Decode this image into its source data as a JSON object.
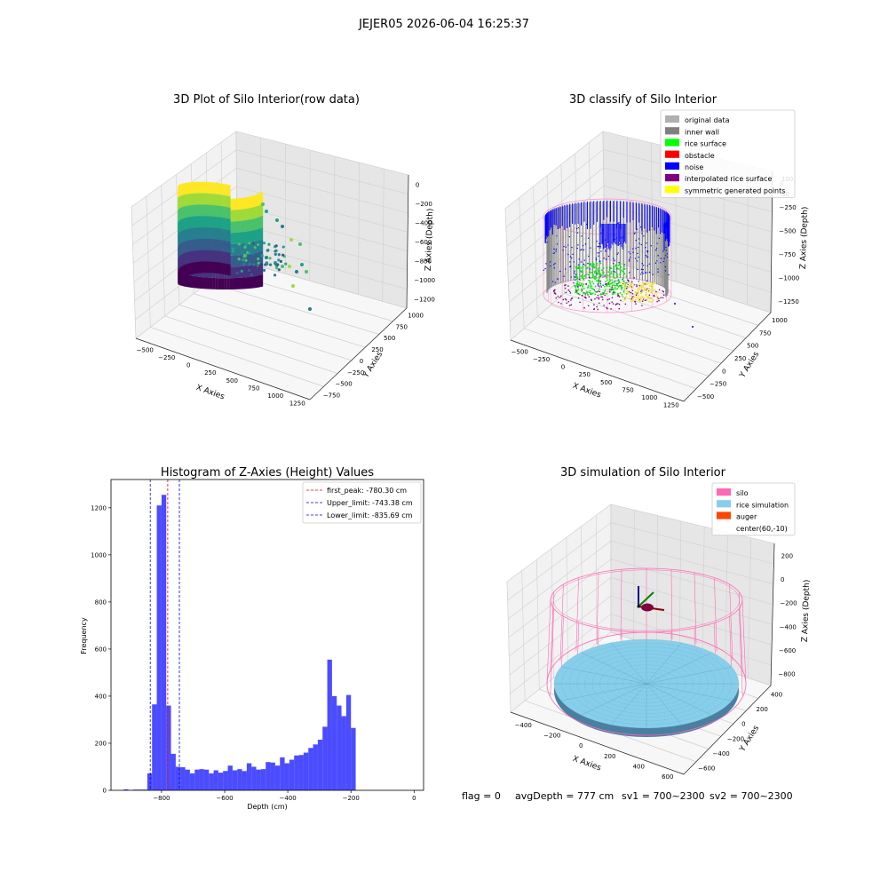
{
  "suptitle": "JEJER05 2026-06-04 16:25:37",
  "footer": {
    "flag": "flag = 0",
    "avg_depth": "avgDepth = 777 cm",
    "sv1": "sv1 = 700~2300",
    "sv2": "sv2 = 700~2300"
  },
  "chart_data": [
    {
      "type": "scatter",
      "projection": "3d",
      "title": "3D Plot of Silo Interior(row data)",
      "xlabel": "X Axies",
      "ylabel": "Y Axies",
      "zlabel": "Z Axies (Depth)",
      "x_ticks": [
        "−500",
        "−250",
        "0",
        "250",
        "500",
        "750",
        "1000",
        "1250"
      ],
      "y_ticks": [
        "−750",
        "−500",
        "−250",
        "0",
        "250",
        "500",
        "750",
        "1000"
      ],
      "z_ticks": [
        "0",
        "−200",
        "−400",
        "−600",
        "−800",
        "−1000",
        "−1200"
      ],
      "colormap": "viridis",
      "grid": true
    },
    {
      "type": "scatter",
      "projection": "3d",
      "title": "3D classify of Silo Interior",
      "xlabel": "X Axies",
      "ylabel": "Y Axies",
      "zlabel": "Z Axies (Depth)",
      "x_ticks": [
        "−500",
        "−250",
        "0",
        "250",
        "500",
        "750",
        "1000",
        "1250"
      ],
      "y_ticks": [
        "−500",
        "−250",
        "0",
        "250",
        "500",
        "750",
        "1000"
      ],
      "z_ticks": [
        "0",
        "−250",
        "−500",
        "−750",
        "−1000",
        "−1250"
      ],
      "z_ticks_partial": [
        "100",
        "50"
      ],
      "legend_position": "top-right",
      "legend": [
        {
          "name": "original data",
          "color": "#b0b0b0"
        },
        {
          "name": "inner wall",
          "color": "#808080"
        },
        {
          "name": "rice surface",
          "color": "#00ff00"
        },
        {
          "name": "obstacle",
          "color": "#ff0000"
        },
        {
          "name": "noise",
          "color": "#0000ff"
        },
        {
          "name": "interpolated rice surface",
          "color": "#800080"
        },
        {
          "name": "symmetric generated points",
          "color": "#ffff00"
        }
      ],
      "grid": true
    },
    {
      "type": "bar",
      "subtype": "histogram",
      "title": "Histogram of Z-Axies (Height) Values",
      "xlabel": "Depth (cm)",
      "ylabel": "Frequency",
      "xlim": [
        -960,
        30
      ],
      "ylim": [
        0,
        1320
      ],
      "x_ticks": [
        -800,
        -600,
        -400,
        -200,
        0
      ],
      "x_tick_labels": [
        "−800",
        "−600",
        "−400",
        "−200",
        "0"
      ],
      "y_ticks": [
        0,
        200,
        400,
        600,
        800,
        1000,
        1200
      ],
      "bar_color": "#0000ff",
      "bar_alpha": 0.7,
      "bins": [
        [
          -920,
          -905,
          4
        ],
        [
          -905,
          -890,
          1
        ],
        [
          -890,
          -875,
          3
        ],
        [
          -875,
          -860,
          3
        ],
        [
          -860,
          -845,
          3
        ],
        [
          -845,
          -830,
          72
        ],
        [
          -830,
          -815,
          365
        ],
        [
          -815,
          -800,
          1210
        ],
        [
          -800,
          -785,
          1255
        ],
        [
          -785,
          -770,
          360
        ],
        [
          -770,
          -755,
          155
        ],
        [
          -755,
          -740,
          100
        ],
        [
          -740,
          -725,
          98
        ],
        [
          -725,
          -710,
          88
        ],
        [
          -710,
          -695,
          72
        ],
        [
          -695,
          -680,
          88
        ],
        [
          -680,
          -665,
          90
        ],
        [
          -665,
          -650,
          88
        ],
        [
          -650,
          -635,
          72
        ],
        [
          -635,
          -620,
          85
        ],
        [
          -620,
          -605,
          75
        ],
        [
          -605,
          -590,
          82
        ],
        [
          -590,
          -575,
          105
        ],
        [
          -575,
          -560,
          85
        ],
        [
          -560,
          -545,
          90
        ],
        [
          -545,
          -530,
          82
        ],
        [
          -530,
          -515,
          115
        ],
        [
          -515,
          -500,
          100
        ],
        [
          -500,
          -485,
          88
        ],
        [
          -485,
          -470,
          90
        ],
        [
          -470,
          -455,
          120
        ],
        [
          -455,
          -440,
          118
        ],
        [
          -440,
          -425,
          105
        ],
        [
          -425,
          -410,
          140
        ],
        [
          -410,
          -395,
          115
        ],
        [
          -395,
          -380,
          130
        ],
        [
          -380,
          -365,
          148
        ],
        [
          -365,
          -350,
          150
        ],
        [
          -350,
          -335,
          160
        ],
        [
          -335,
          -320,
          180
        ],
        [
          -320,
          -305,
          195
        ],
        [
          -305,
          -290,
          215
        ],
        [
          -290,
          -275,
          270
        ],
        [
          -275,
          -260,
          555
        ],
        [
          -260,
          -245,
          400
        ],
        [
          -245,
          -230,
          360
        ],
        [
          -230,
          -215,
          315
        ],
        [
          -215,
          -200,
          405
        ],
        [
          -200,
          -185,
          265
        ]
      ],
      "vlines": [
        {
          "name": "first_peak: -780.30 cm",
          "x": -780.3,
          "color": "#ff0000"
        },
        {
          "name": "Upper_limit: -743.38 cm",
          "x": -743.38,
          "color": "#0000ff"
        },
        {
          "name": "Lower_limit: -835.69 cm",
          "x": -835.69,
          "color": "#0000ff"
        }
      ],
      "legend_position": "top-right"
    },
    {
      "type": "scatter",
      "projection": "3d",
      "title": "3D simulation of Silo Interior",
      "xlabel": "X Axies",
      "ylabel": "Y Axies",
      "zlabel": "Z Axies (Depth)",
      "x_ticks": [
        "−400",
        "−200",
        "0",
        "200",
        "400",
        "600"
      ],
      "y_ticks": [
        "−600",
        "−400",
        "−200",
        "0",
        "200",
        "400"
      ],
      "z_ticks": [
        "200",
        "0",
        "−200",
        "−400",
        "−600",
        "−800"
      ],
      "legend_position": "top-right",
      "legend": [
        {
          "name": "silo",
          "color": "#ff69b4"
        },
        {
          "name": "rice simulation",
          "color": "#87ceeb"
        },
        {
          "name": "auger",
          "color": "#ff4500"
        },
        {
          "name": "center(60,-10)",
          "color": ""
        }
      ],
      "grid": true
    }
  ]
}
